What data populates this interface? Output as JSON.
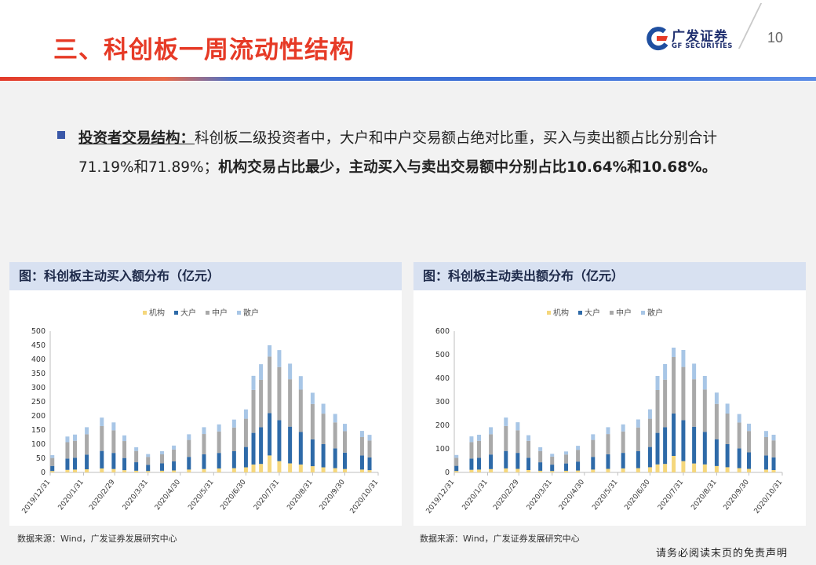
{
  "header": {
    "title": "三、科创板一周流动性结构",
    "logo_cn": "广发证券",
    "logo_en": "GF SECURITIES",
    "page_number": "10"
  },
  "body": {
    "lead": "投资者交易结构：",
    "text1": "科创板二级投资者中，大户和中户交易额占绝对比重，买入与卖出额占比分别合计71.19%和71.89%；",
    "text2": "机构交易占比最少，主动买入与卖出交易额中分别占比10.64%和10.68%。"
  },
  "left_panel": {
    "title": "图：科创板主动买入额分布（亿元）",
    "source": "数据来源：Wind，广发证券发展研究中心"
  },
  "right_panel": {
    "title": "图：科创板主动卖出额分布（亿元）",
    "source": "数据来源：Wind，广发证券发展研究中心"
  },
  "footer": {
    "disclaimer": "请务必阅读末页的免责声明"
  },
  "colors": {
    "institution": "#f5d77c",
    "large": "#2e6aa8",
    "medium": "#a9a9a9",
    "retail": "#a8c6e6",
    "title_red": "#e63a26",
    "accent_blue": "#3a58a8"
  },
  "chart_data": [
    {
      "type": "bar",
      "stacked": true,
      "title": "图：科创板主动买入额分布（亿元）",
      "xlabel": "",
      "ylabel": "",
      "ylim": [
        0,
        500
      ],
      "yticks": [
        0,
        50,
        100,
        150,
        200,
        250,
        300,
        350,
        400,
        450,
        500
      ],
      "xticks": [
        "2019/12/31",
        "2020/1/31",
        "2020/2/29",
        "2020/3/31",
        "2020/4/30",
        "2020/5/31",
        "2020/6/30",
        "2020/7/31",
        "2020/8/31",
        "2020/9/30",
        "2020/10/31"
      ],
      "legend": [
        "机构",
        "大户",
        "中户",
        "散户"
      ],
      "legend_position": "top",
      "x": [
        "2020/1/2",
        "2020/1/16",
        "2020/1/23",
        "2020/2/3",
        "2020/2/17",
        "2020/2/28",
        "2020/3/9",
        "2020/3/20",
        "2020/3/31",
        "2020/4/13",
        "2020/4/24",
        "2020/5/8",
        "2020/5/22",
        "2020/6/5",
        "2020/6/19",
        "2020/6/30",
        "2020/7/7",
        "2020/7/14",
        "2020/7/22",
        "2020/7/31",
        "2020/8/10",
        "2020/8/20",
        "2020/8/31",
        "2020/9/10",
        "2020/9/21",
        "2020/9/30",
        "2020/10/16",
        "2020/10/23"
      ],
      "series": [
        {
          "name": "机构",
          "values": [
            5,
            9,
            10,
            11,
            14,
            12,
            8,
            6,
            5,
            6,
            7,
            10,
            12,
            14,
            15,
            18,
            28,
            30,
            60,
            40,
            32,
            28,
            22,
            18,
            15,
            12,
            10,
            8
          ]
        },
        {
          "name": "大户",
          "values": [
            18,
            40,
            42,
            52,
            62,
            57,
            43,
            30,
            22,
            26,
            32,
            45,
            52,
            55,
            60,
            72,
            112,
            130,
            150,
            145,
            130,
            115,
            95,
            82,
            70,
            58,
            50,
            45
          ]
        },
        {
          "name": "中户",
          "values": [
            28,
            58,
            60,
            72,
            88,
            80,
            60,
            40,
            28,
            32,
            42,
            60,
            72,
            76,
            84,
            100,
            152,
            168,
            200,
            188,
            168,
            150,
            125,
            108,
            92,
            76,
            65,
            60
          ]
        },
        {
          "name": "散户",
          "values": [
            10,
            20,
            22,
            25,
            30,
            28,
            20,
            13,
            10,
            11,
            14,
            20,
            24,
            25,
            28,
            33,
            50,
            55,
            40,
            60,
            55,
            48,
            40,
            35,
            30,
            26,
            22,
            20
          ]
        }
      ]
    },
    {
      "type": "bar",
      "stacked": true,
      "title": "图：科创板主动卖出额分布（亿元）",
      "xlabel": "",
      "ylabel": "",
      "ylim": [
        0,
        600
      ],
      "yticks": [
        0,
        100,
        200,
        300,
        400,
        500,
        600
      ],
      "xticks": [
        "2019/12/31",
        "2020/1/31",
        "2020/2/29",
        "2020/3/31",
        "2020/4/30",
        "2020/5/31",
        "2020/6/30",
        "2020/7/31",
        "2020/8/31",
        "2020/9/30",
        "2020/10/31"
      ],
      "legend": [
        "机构",
        "大户",
        "中户",
        "散户"
      ],
      "legend_position": "top",
      "x": [
        "2020/1/2",
        "2020/1/16",
        "2020/1/23",
        "2020/2/3",
        "2020/2/17",
        "2020/2/28",
        "2020/3/9",
        "2020/3/20",
        "2020/3/31",
        "2020/4/13",
        "2020/4/24",
        "2020/5/8",
        "2020/5/22",
        "2020/6/5",
        "2020/6/19",
        "2020/6/30",
        "2020/7/7",
        "2020/7/14",
        "2020/7/22",
        "2020/7/31",
        "2020/8/10",
        "2020/8/20",
        "2020/8/31",
        "2020/9/10",
        "2020/9/21",
        "2020/9/30",
        "2020/10/16",
        "2020/10/23"
      ],
      "series": [
        {
          "name": "机构",
          "values": [
            6,
            11,
            12,
            14,
            17,
            15,
            10,
            7,
            6,
            7,
            8,
            12,
            15,
            17,
            18,
            22,
            34,
            36,
            70,
            48,
            38,
            34,
            27,
            22,
            18,
            15,
            12,
            10
          ]
        },
        {
          "name": "大户",
          "values": [
            22,
            48,
            50,
            62,
            74,
            68,
            52,
            36,
            27,
            31,
            38,
            54,
            62,
            66,
            72,
            86,
            134,
            156,
            180,
            174,
            156,
            138,
            114,
            98,
            84,
            70,
            60,
            54
          ]
        },
        {
          "name": "中户",
          "values": [
            34,
            70,
            72,
            86,
            106,
            96,
            72,
            48,
            34,
            38,
            50,
            72,
            86,
            91,
            101,
            120,
            182,
            202,
            240,
            226,
            202,
            180,
            150,
            130,
            110,
            91,
            78,
            72
          ]
        },
        {
          "name": "散户",
          "values": [
            12,
            24,
            26,
            30,
            36,
            34,
            24,
            16,
            12,
            13,
            17,
            24,
            29,
            30,
            34,
            40,
            60,
            66,
            40,
            72,
            66,
            58,
            48,
            42,
            36,
            31,
            26,
            24
          ]
        }
      ]
    }
  ]
}
